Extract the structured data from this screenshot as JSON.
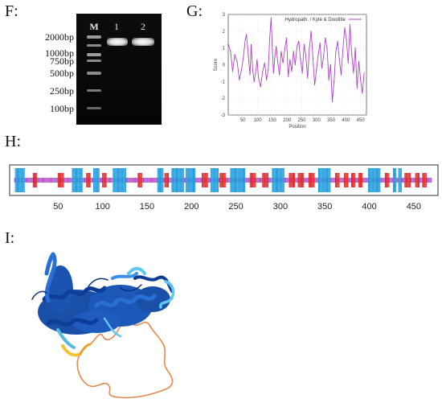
{
  "figure": {
    "panels": [
      {
        "id": "F",
        "label": "F:"
      },
      {
        "id": "G",
        "label": "G:"
      },
      {
        "id": "H",
        "label": "H:"
      },
      {
        "id": "I",
        "label": "I:"
      }
    ]
  },
  "gel": {
    "lanes": [
      "M",
      "1",
      "2"
    ],
    "markers": [
      "2000bp",
      "1000bp",
      "750bp",
      "500bp",
      "250bp",
      "100bp"
    ]
  },
  "chart_data": [
    {
      "type": "line",
      "legend": "Hydropath. / Kyte & Doolittle",
      "xlabel": "Position",
      "ylabel": "Score",
      "xlim": [
        0,
        470
      ],
      "ylim": [
        -3,
        3
      ],
      "xticks": [
        50,
        100,
        150,
        200,
        250,
        300,
        350,
        400,
        450
      ],
      "yticks": [
        -3,
        -2,
        -1,
        0,
        1,
        2,
        3
      ],
      "grid": true,
      "legend_position": "top-right",
      "series": [
        {
          "name": "Hydropath. / Kyte & Doolittle",
          "color": "#b040c8",
          "x": [
            1,
            8,
            15,
            22,
            30,
            38,
            45,
            52,
            58,
            62,
            66,
            70,
            74,
            78,
            83,
            88,
            93,
            98,
            103,
            110,
            117,
            124,
            130,
            136,
            141,
            146,
            150,
            154,
            158,
            163,
            168,
            174,
            180,
            186,
            192,
            198,
            204,
            210,
            216,
            222,
            228,
            234,
            240,
            246,
            252,
            258,
            264,
            270,
            276,
            282,
            288,
            294,
            300,
            306,
            312,
            318,
            324,
            330,
            336,
            342,
            348,
            354,
            360,
            366,
            372,
            378,
            384,
            390,
            396,
            402,
            408,
            414,
            420,
            426,
            432,
            438,
            444,
            450,
            456,
            462
          ],
          "y": [
            1.2,
            0.8,
            -0.4,
            0.6,
            0.2,
            -0.9,
            -0.3,
            0.5,
            1.5,
            1.8,
            1.0,
            0.2,
            -0.6,
            1.2,
            -0.3,
            -1.0,
            -0.5,
            0.3,
            -0.8,
            -1.3,
            -0.4,
            0.1,
            -0.9,
            -0.3,
            1.6,
            2.8,
            0.9,
            -0.5,
            0.4,
            1.1,
            0.2,
            -0.6,
            0.8,
            0.1,
            0.9,
            1.6,
            -0.7,
            0.3,
            -0.4,
            0.8,
            0.0,
            1.1,
            1.4,
            0.3,
            -0.5,
            1.2,
            0.5,
            -0.8,
            1.0,
            2.0,
            0.4,
            -1.2,
            -0.3,
            0.6,
            1.3,
            -0.2,
            0.5,
            1.6,
            1.0,
            -0.9,
            0.0,
            -2.2,
            -1.0,
            0.8,
            1.4,
            0.3,
            -0.6,
            0.9,
            2.2,
            1.5,
            0.1,
            2.4,
            0.6,
            -0.5,
            1.0,
            -1.4,
            0.2,
            -0.9,
            -1.7,
            -0.5
          ]
        }
      ]
    },
    {
      "type": "bar",
      "xlim": [
        0,
        470
      ],
      "xticks": [
        50,
        100,
        150,
        200,
        250,
        300,
        350,
        400,
        450
      ],
      "tick_labels": [
        "50",
        "100",
        "150",
        "200",
        "250",
        "300",
        "350",
        "400",
        "450"
      ],
      "categories": [
        "helix",
        "strand",
        "coil"
      ],
      "colors": {
        "helix": "#1e9bdc",
        "strand": "#e0282a",
        "coil": "#b040c8"
      },
      "helix_segments": [
        [
          2,
          12
        ],
        [
          66,
          77
        ],
        [
          90,
          96
        ],
        [
          112,
          126
        ],
        [
          162,
          168
        ],
        [
          178,
          191
        ],
        [
          194,
          204
        ],
        [
          222,
          230
        ],
        [
          244,
          260
        ],
        [
          291,
          304
        ],
        [
          343,
          356
        ],
        [
          399,
          412
        ],
        [
          427,
          430
        ],
        [
          433,
          436
        ]
      ],
      "strand_segments": [
        [
          22,
          26
        ],
        [
          50,
          56
        ],
        [
          82,
          86
        ],
        [
          100,
          104
        ],
        [
          140,
          144
        ],
        [
          170,
          174
        ],
        [
          212,
          218
        ],
        [
          232,
          238
        ],
        [
          266,
          272
        ],
        [
          280,
          286
        ],
        [
          310,
          316
        ],
        [
          320,
          326
        ],
        [
          332,
          338
        ],
        [
          362,
          366
        ],
        [
          372,
          376
        ],
        [
          380,
          384
        ],
        [
          388,
          392
        ],
        [
          418,
          422
        ],
        [
          440,
          446
        ],
        [
          452,
          456
        ],
        [
          460,
          464
        ]
      ]
    }
  ]
}
